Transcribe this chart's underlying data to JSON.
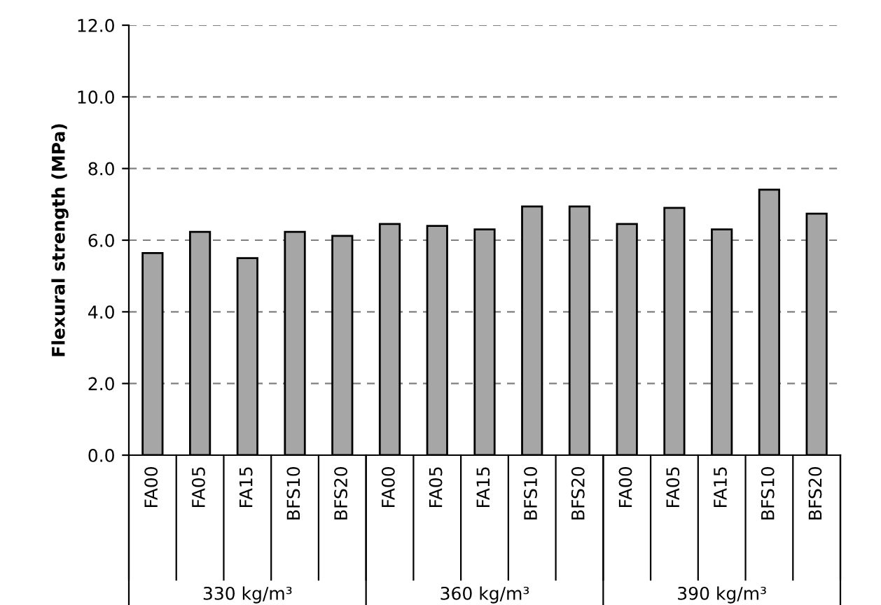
{
  "chart_data": {
    "type": "bar",
    "ylabel": "Flexural strength (MPa)",
    "categories": [
      "FA00",
      "FA05",
      "FA15",
      "BFS10",
      "BFS20",
      "FA00",
      "FA05",
      "FA15",
      "BFS10",
      "BFS20",
      "FA00",
      "FA05",
      "FA15",
      "BFS10",
      "BFS20"
    ],
    "values": [
      5.64,
      6.23,
      5.5,
      6.23,
      6.12,
      6.45,
      6.4,
      6.3,
      6.94,
      6.94,
      6.45,
      6.9,
      6.3,
      7.41,
      6.74
    ],
    "color": "#a6a6a6",
    "ylim": [
      0,
      12
    ],
    "yticks": [
      {
        "value": 0,
        "label": "0.0"
      },
      {
        "value": 2,
        "label": "2.0"
      },
      {
        "value": 4,
        "label": "4.0"
      },
      {
        "value": 6,
        "label": "6.0"
      },
      {
        "value": 8,
        "label": "8.0"
      },
      {
        "value": 10,
        "label": "10.0"
      },
      {
        "value": 12,
        "label": "12.0"
      }
    ],
    "grid": "y",
    "annotations": [
      "330 kg/m³",
      "360 kg/m³",
      "390 kg/m³"
    ]
  }
}
